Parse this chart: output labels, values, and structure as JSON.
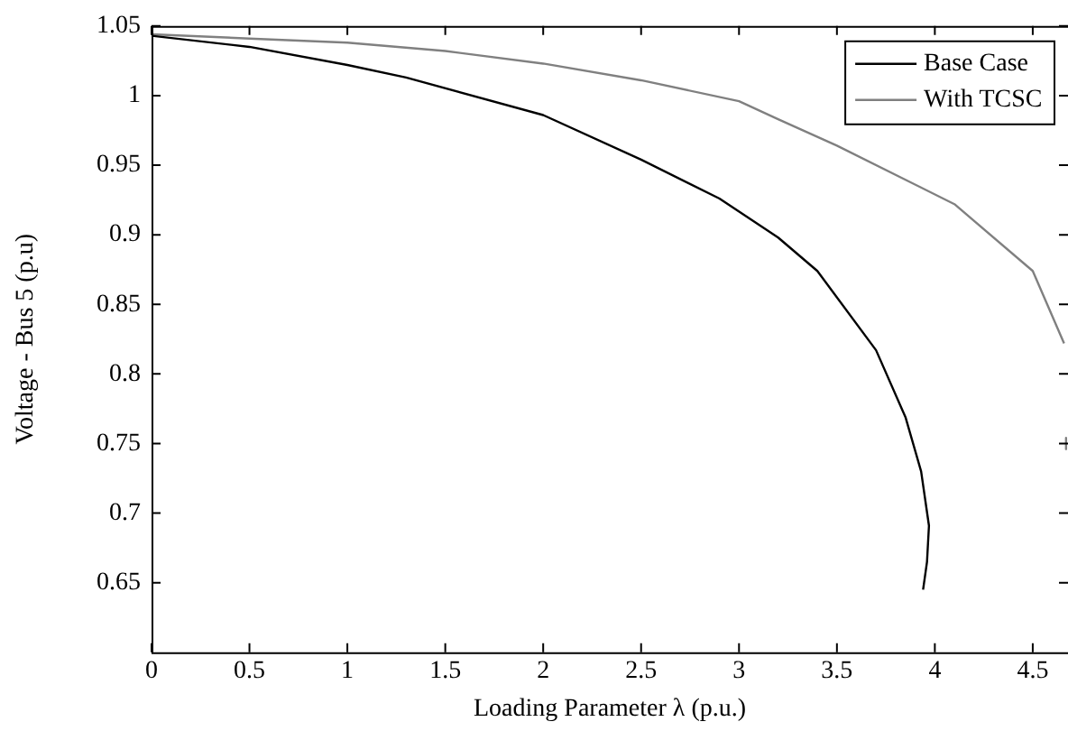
{
  "chart_data": {
    "type": "line",
    "xlabel": "Loading Parameter λ (p.u.)",
    "ylabel": "Voltage - Bus 5 (p.u)",
    "xlim": [
      0,
      4.68
    ],
    "xticks": [
      0,
      0.5,
      1,
      1.5,
      2,
      2.5,
      3,
      3.5,
      4,
      4.5
    ],
    "ylim": [
      0.6,
      1.05
    ],
    "yticks": [
      0.65,
      0.7,
      0.75,
      0.8,
      0.85,
      0.9,
      0.95,
      1,
      1.05
    ],
    "grid": false,
    "legend": "top right",
    "marker": "none",
    "line_style": "solid",
    "series": [
      {
        "name": "Base Case",
        "color": "#000000",
        "x": [
          0,
          0.5,
          1,
          1.3,
          2,
          2.5,
          2.9,
          3.2,
          3.4,
          3.7,
          3.85,
          3.93,
          3.97,
          3.96,
          3.94
        ],
        "values": [
          1.043,
          1.035,
          1.022,
          1.013,
          0.986,
          0.954,
          0.926,
          0.898,
          0.874,
          0.817,
          0.769,
          0.73,
          0.691,
          0.665,
          0.645
        ]
      },
      {
        "name": "With TCSC",
        "color": "#808080",
        "x": [
          0,
          0.5,
          1,
          1.5,
          2,
          2.5,
          3,
          3.2,
          3.5,
          4.1,
          4.5,
          4.66,
          null,
          4.67,
          4.67
        ],
        "values": [
          1.044,
          1.041,
          1.038,
          1.032,
          1.023,
          1.011,
          0.996,
          0.983,
          0.964,
          0.922,
          0.874,
          0.822,
          null,
          0.754,
          0.746
        ]
      }
    ]
  }
}
